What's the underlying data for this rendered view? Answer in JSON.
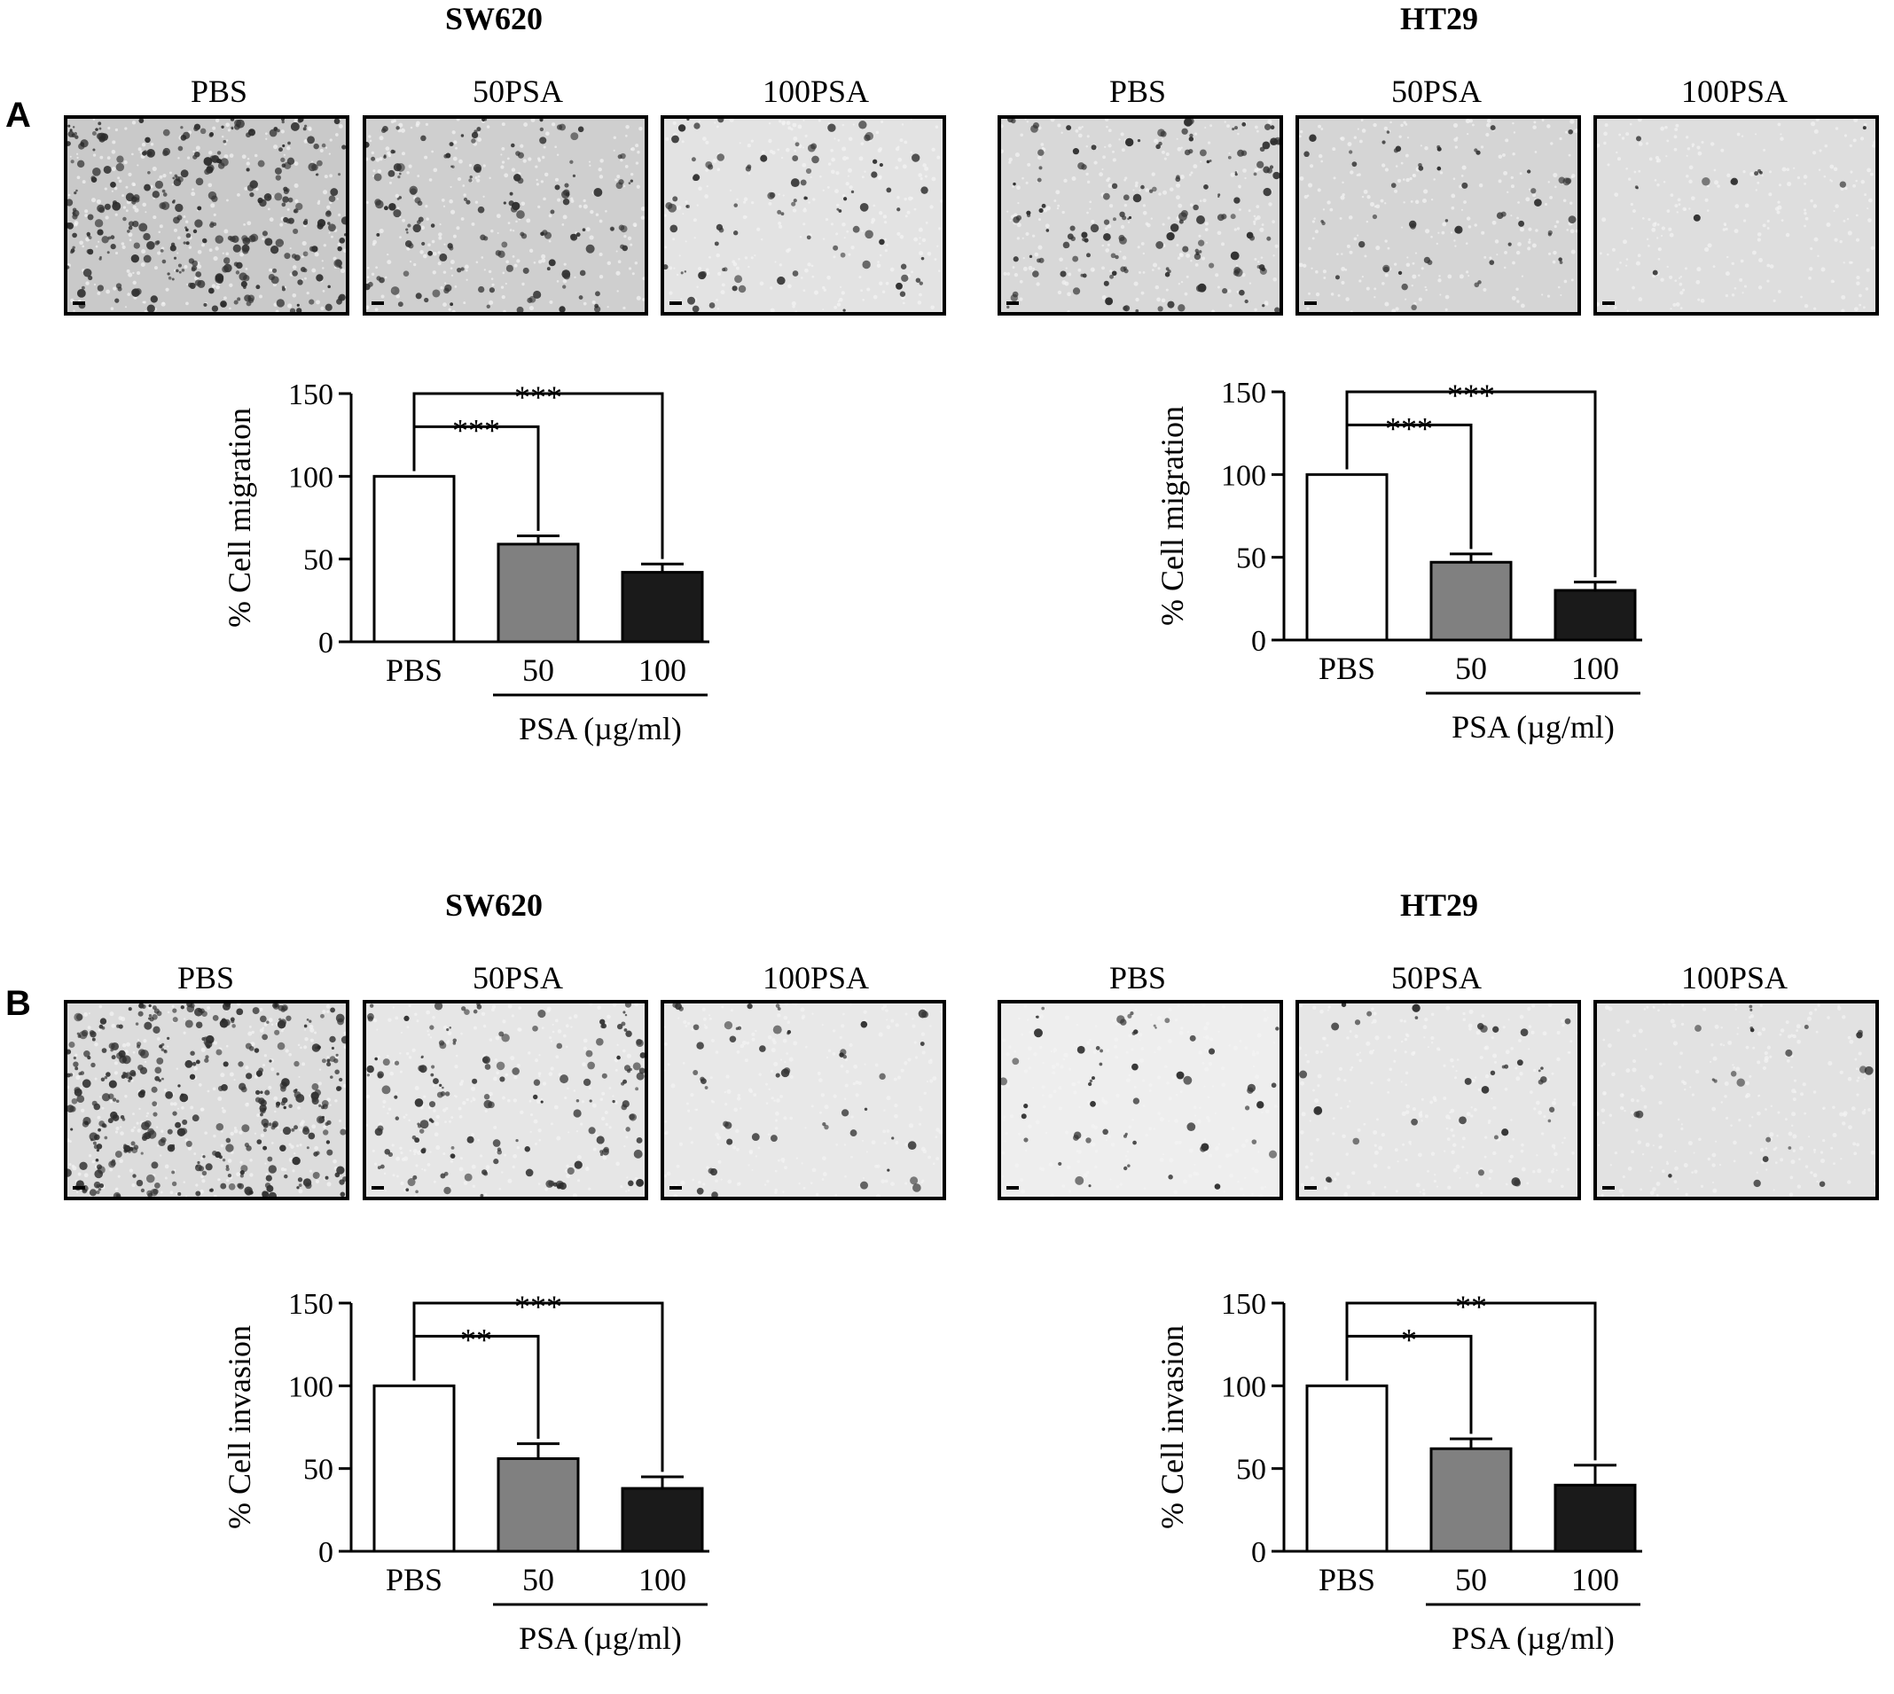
{
  "panels": [
    {
      "letter": "A",
      "cells": [
        {
          "title": "SW620",
          "image_labels": [
            "PBS",
            "50PSA",
            "100PSA"
          ],
          "image_tones": [
            "#c9c9c9",
            "#cfcfcf",
            "#e3e3e3"
          ],
          "image_density": [
            260,
            110,
            70
          ]
        },
        {
          "title": "HT29",
          "image_labels": [
            "PBS",
            "50PSA",
            "100PSA"
          ],
          "image_tones": [
            "#d8d8d8",
            "#d5d5d5",
            "#dedede"
          ],
          "image_density": [
            120,
            40,
            10
          ]
        }
      ]
    },
    {
      "letter": "B",
      "cells": [
        {
          "title": "SW620",
          "image_labels": [
            "PBS",
            "50PSA",
            "100PSA"
          ],
          "image_tones": [
            "#dcdcdc",
            "#e6e6e6",
            "#e8e8e8"
          ],
          "image_density": [
            300,
            120,
            40
          ]
        },
        {
          "title": "HT29",
          "image_labels": [
            "PBS",
            "50PSA",
            "100PSA"
          ],
          "image_tones": [
            "#eeeeee",
            "#e6e6e6",
            "#e2e2e2"
          ],
          "image_density": [
            45,
            30,
            18
          ]
        }
      ]
    }
  ],
  "chart_data": [
    {
      "type": "bar",
      "panel": "A",
      "cell": "SW620",
      "categories": [
        "PBS",
        "50",
        "100"
      ],
      "values": [
        100,
        59,
        42
      ],
      "errors": [
        0,
        5,
        5
      ],
      "colors": [
        "#ffffff",
        "#808080",
        "#1a1a1a"
      ],
      "ylabel": "% Cell migration",
      "xgroup_label": "PSA (µg/ml)",
      "ylim": [
        0,
        150
      ],
      "yticks": [
        0,
        50,
        100,
        150
      ],
      "significance": [
        {
          "from": 0,
          "to": 1,
          "label": "***"
        },
        {
          "from": 0,
          "to": 2,
          "label": "***"
        }
      ]
    },
    {
      "type": "bar",
      "panel": "A",
      "cell": "HT29",
      "categories": [
        "PBS",
        "50",
        "100"
      ],
      "values": [
        100,
        47,
        30
      ],
      "errors": [
        0,
        5,
        5
      ],
      "colors": [
        "#ffffff",
        "#808080",
        "#1a1a1a"
      ],
      "ylabel": "% Cell migration",
      "xgroup_label": "PSA (µg/ml)",
      "ylim": [
        0,
        150
      ],
      "yticks": [
        0,
        50,
        100,
        150
      ],
      "significance": [
        {
          "from": 0,
          "to": 1,
          "label": "***"
        },
        {
          "from": 0,
          "to": 2,
          "label": "***"
        }
      ]
    },
    {
      "type": "bar",
      "panel": "B",
      "cell": "SW620",
      "categories": [
        "PBS",
        "50",
        "100"
      ],
      "values": [
        100,
        56,
        38
      ],
      "errors": [
        0,
        9,
        7
      ],
      "colors": [
        "#ffffff",
        "#808080",
        "#1a1a1a"
      ],
      "ylabel": "% Cell invasion",
      "xgroup_label": "PSA (µg/ml)",
      "ylim": [
        0,
        150
      ],
      "yticks": [
        0,
        50,
        100,
        150
      ],
      "significance": [
        {
          "from": 0,
          "to": 1,
          "label": "**"
        },
        {
          "from": 0,
          "to": 2,
          "label": "***"
        }
      ]
    },
    {
      "type": "bar",
      "panel": "B",
      "cell": "HT29",
      "categories": [
        "PBS",
        "50",
        "100"
      ],
      "values": [
        100,
        62,
        40
      ],
      "errors": [
        0,
        6,
        12
      ],
      "colors": [
        "#ffffff",
        "#808080",
        "#1a1a1a"
      ],
      "ylabel": "% Cell invasion",
      "xgroup_label": "PSA (µg/ml)",
      "ylim": [
        0,
        150
      ],
      "yticks": [
        0,
        50,
        100,
        150
      ],
      "significance": [
        {
          "from": 0,
          "to": 1,
          "label": "*"
        },
        {
          "from": 0,
          "to": 2,
          "label": "**"
        }
      ]
    }
  ]
}
